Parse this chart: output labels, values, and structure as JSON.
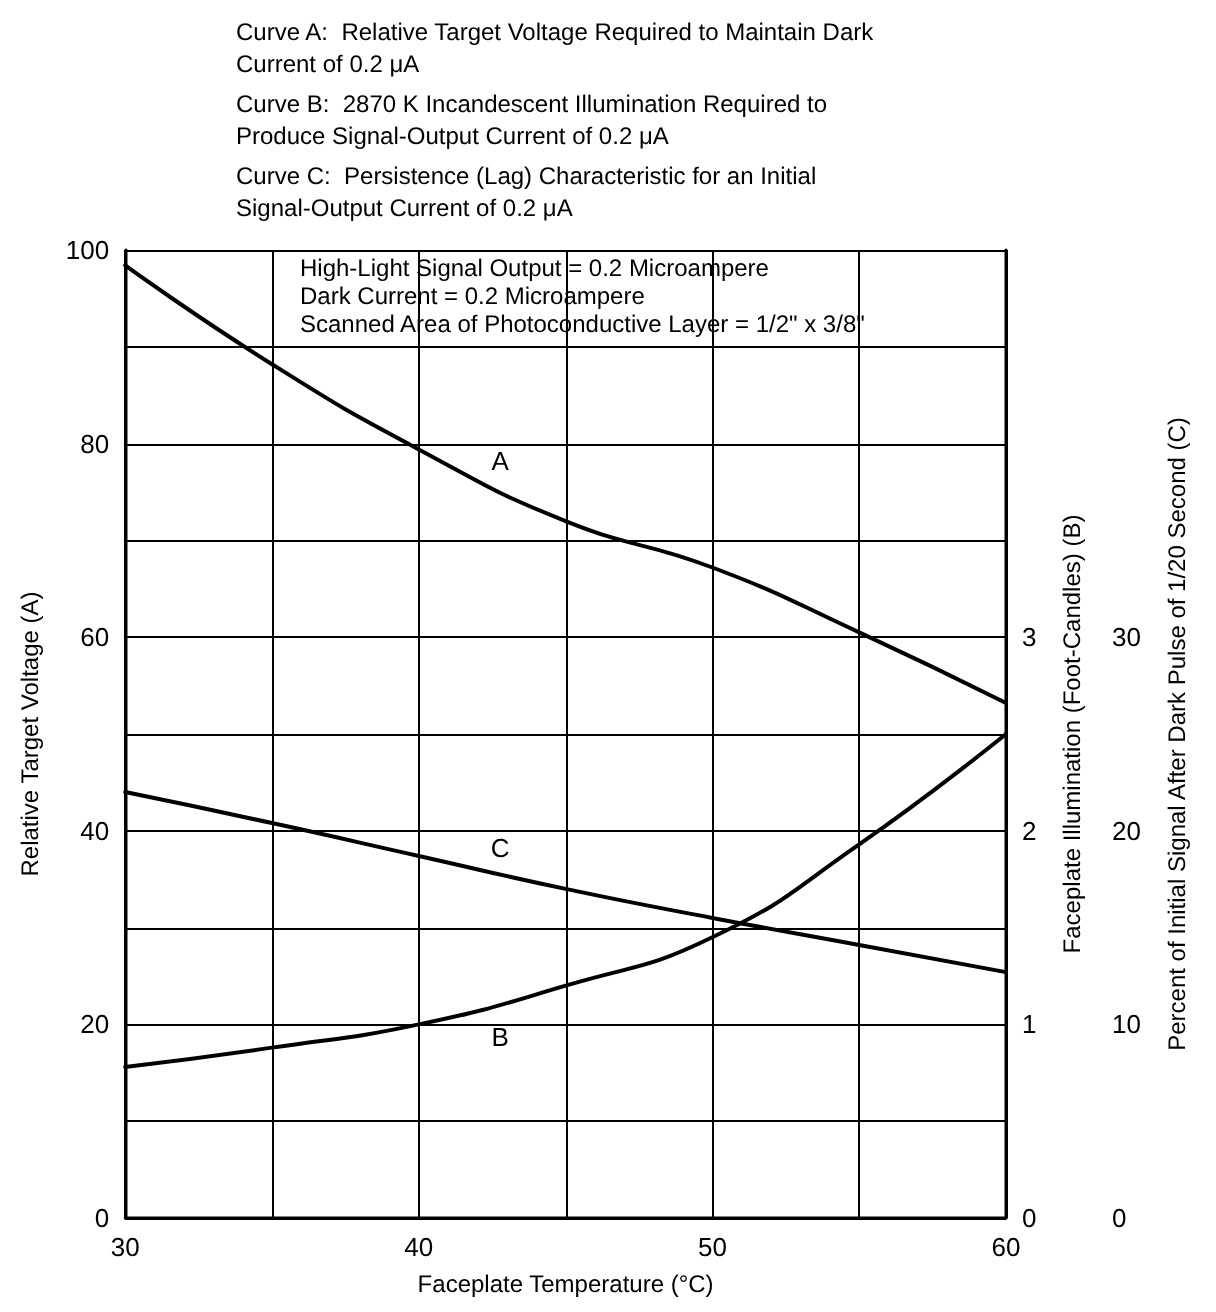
{
  "chart_data": {
    "type": "line",
    "xlabel": "Faceplate Temperature (°C)",
    "ylabel": "Relative Target Voltage (A)",
    "y2label": "Faceplate Illumination (Foot-Candles) (B)",
    "y3label": "Percent of Initial Signal After Dark Pulse of 1/20 Second (C)",
    "x": [
      30,
      35,
      40,
      45,
      50,
      55,
      60
    ],
    "series": [
      {
        "name": "A",
        "color": "#000000",
        "values": [
          98.4,
          88.2,
          79.4,
          72,
          67.2,
          60.5,
          53.2
        ]
      },
      {
        "name": "B",
        "color": "#000000",
        "axis": "y2",
        "values": [
          0.78,
          0.88,
          1.0,
          1.2,
          1.45,
          1.93,
          2.5
        ]
      },
      {
        "name": "C",
        "color": "#000000",
        "axis": "y3",
        "values": [
          22,
          20.4,
          18.7,
          17,
          15.5,
          14.1,
          12.7
        ]
      }
    ],
    "xlim": [
      30,
      60
    ],
    "xticks": [
      30,
      {
        "value": 35,
        "label": null
      },
      40,
      {
        "value": 45,
        "label": null
      },
      50,
      {
        "value": 55,
        "label": null
      },
      60
    ],
    "ylim": [
      0,
      100
    ],
    "yticks": [
      0,
      {
        "value": 10,
        "label": null
      },
      20,
      {
        "value": 30,
        "label": null
      },
      40,
      {
        "value": 50,
        "label": null
      },
      60,
      {
        "value": 70,
        "label": null
      },
      80,
      {
        "value": 90,
        "label": null
      },
      100
    ],
    "y2lim": [
      0,
      5
    ],
    "y2ticks": [
      0,
      1,
      2,
      3
    ],
    "y3lim": [
      0,
      50
    ],
    "y3ticks": [
      0,
      10,
      20,
      30
    ],
    "grid": true,
    "marker": "none",
    "line_style": "solid",
    "annotations": [
      "Curve A:  Relative Target Voltage Required to Maintain Dark Current of 0.2 μA",
      "Curve B:  2870 K Incandescent Illumination Required to Produce Signal-Output Current of 0.2 μA",
      "Curve C:  Persistence (Lag) Characteristic for an Initial Signal-Output Current of 0.2 μA",
      "High-Light Signal Output = 0.2 Microampere",
      "Dark Current = 0.2 Microampere",
      "Scanned Area of Photoconductive Layer = 1/2\" x 3/8\""
    ]
  }
}
